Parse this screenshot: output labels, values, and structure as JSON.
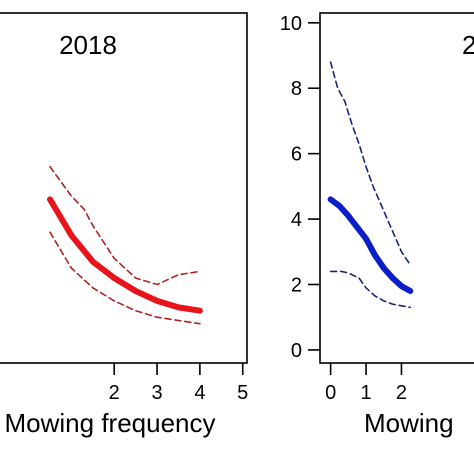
{
  "chart_data": [
    {
      "type": "line",
      "title": "2018",
      "xlabel": "Mowing frequency",
      "ylabel": "",
      "xlim": [
        -0.9,
        5.1
      ],
      "ylim": [
        -0.4,
        10.3
      ],
      "x_ticks": [
        "2",
        "3",
        "4",
        "5"
      ],
      "y_ticks": [],
      "colors": {
        "fit": "#e8141b",
        "ci": "#b22222"
      },
      "series": [
        {
          "role": "fit",
          "x": [
            0.5,
            1.0,
            1.5,
            2.0,
            2.5,
            3.0,
            3.5,
            4.0
          ],
          "y": [
            4.6,
            3.5,
            2.7,
            2.2,
            1.8,
            1.5,
            1.3,
            1.2
          ]
        },
        {
          "role": "ci-upper",
          "x": [
            0.5,
            1.0,
            1.3,
            1.5,
            2.0,
            2.5,
            3.0,
            3.5,
            4.0
          ],
          "y": [
            5.6,
            4.7,
            4.3,
            3.8,
            2.8,
            2.2,
            2.0,
            2.3,
            2.4
          ]
        },
        {
          "role": "ci-lower",
          "x": [
            0.5,
            1.0,
            1.5,
            2.0,
            2.5,
            3.0,
            3.5,
            4.0
          ],
          "y": [
            3.6,
            2.5,
            1.9,
            1.5,
            1.2,
            1.0,
            0.9,
            0.8
          ]
        }
      ]
    },
    {
      "type": "line",
      "title": "2",
      "xlabel": "Mowing",
      "ylabel": "",
      "xlim": [
        -0.3,
        4.5
      ],
      "ylim": [
        -0.4,
        10.3
      ],
      "x_ticks": [
        "0",
        "1",
        "2"
      ],
      "y_ticks": [
        "0",
        "2",
        "4",
        "6",
        "8",
        "10"
      ],
      "colors": {
        "fit": "#0b1fc8",
        "ci": "#1a237e"
      },
      "series": [
        {
          "role": "fit",
          "x": [
            0,
            0.25,
            0.5,
            0.75,
            1.0,
            1.25,
            1.5,
            1.75,
            2.0,
            2.25
          ],
          "y": [
            4.6,
            4.4,
            4.1,
            3.75,
            3.4,
            2.9,
            2.5,
            2.2,
            1.95,
            1.8
          ]
        },
        {
          "role": "ci-upper",
          "x": [
            0,
            0.2,
            0.4,
            0.6,
            0.8,
            1.0,
            1.2,
            1.4,
            1.6,
            1.8,
            2.0,
            2.25
          ],
          "y": [
            8.8,
            8.0,
            7.6,
            6.9,
            6.3,
            5.6,
            5.0,
            4.5,
            4.0,
            3.5,
            3.0,
            2.6
          ]
        },
        {
          "role": "ci-lower",
          "x": [
            0,
            0.3,
            0.5,
            0.8,
            1.0,
            1.25,
            1.5,
            1.75,
            2.0,
            2.25
          ],
          "y": [
            2.4,
            2.4,
            2.35,
            2.2,
            1.9,
            1.65,
            1.5,
            1.4,
            1.35,
            1.3
          ]
        }
      ]
    }
  ]
}
